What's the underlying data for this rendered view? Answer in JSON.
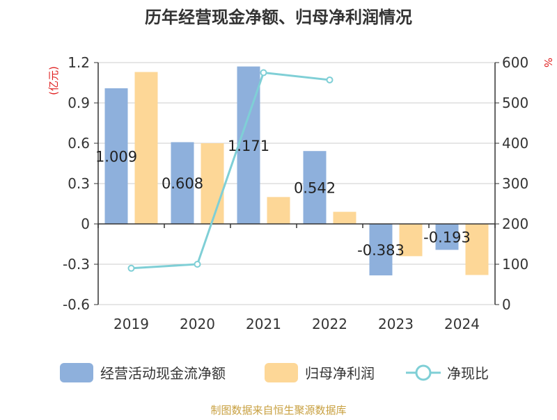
{
  "chart_data": {
    "type": "bar",
    "title": "历年经营现金净额、归母净利润情况",
    "categories": [
      "2019",
      "2020",
      "2021",
      "2022",
      "2023",
      "2024"
    ],
    "series": [
      {
        "name": "经营活动现金流净额",
        "type": "bar",
        "axis": "left",
        "color": "#8eb0dc",
        "values": [
          1.009,
          0.608,
          1.171,
          0.542,
          -0.383,
          -0.193
        ],
        "labels": [
          "1.009",
          "0.608",
          "1.171",
          "0.542",
          "-0.383",
          "-0.193"
        ]
      },
      {
        "name": "归母净利润",
        "type": "bar",
        "axis": "left",
        "color": "#fdd797",
        "values": [
          1.13,
          0.6,
          0.2,
          0.09,
          -0.24,
          -0.38
        ]
      },
      {
        "name": "净现比",
        "type": "line",
        "axis": "right",
        "color": "#7fcfd6",
        "values": [
          90,
          100,
          575,
          557,
          null,
          null
        ]
      }
    ],
    "ylabel_left": "(亿元)",
    "ylabel_right": "%",
    "ylim_left": [
      -0.6,
      1.2
    ],
    "yticks_left": [
      "1.2",
      "0.9",
      "0.6",
      "0.3",
      "0",
      "-0.3",
      "-0.6"
    ],
    "ylim_right": [
      0,
      600
    ],
    "yticks_right": [
      "600",
      "500",
      "400",
      "300",
      "200",
      "100",
      "0"
    ],
    "grid": true,
    "legend_position": "bottom"
  },
  "source": "制图数据来自恒生聚源数据库"
}
